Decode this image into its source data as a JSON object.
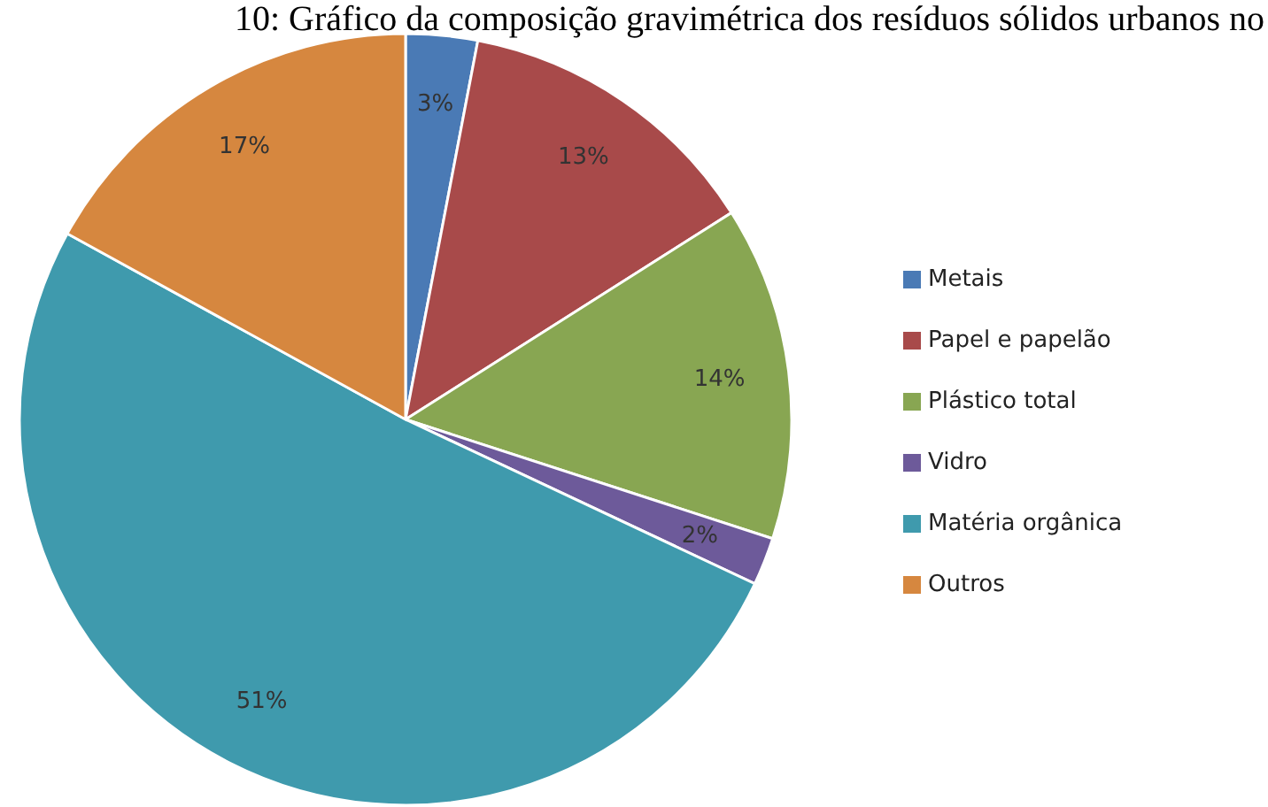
{
  "chart_data": {
    "type": "pie",
    "title": "10: Gráfico da composição gravimétrica dos resíduos sólidos urbanos no",
    "categories": [
      "Metais",
      "Papel e papelão",
      "Plástico total",
      "Vidro",
      "Matéria orgânica",
      "Outros"
    ],
    "values": [
      3,
      13,
      14,
      2,
      51,
      17
    ],
    "value_labels": [
      "3%",
      "13%",
      "14%",
      "2%",
      "51%",
      "17%"
    ],
    "colors": [
      "#4a7ab5",
      "#a84a4a",
      "#88a652",
      "#6d5a9a",
      "#3f9aad",
      "#d6873f"
    ],
    "legend": "right"
  }
}
